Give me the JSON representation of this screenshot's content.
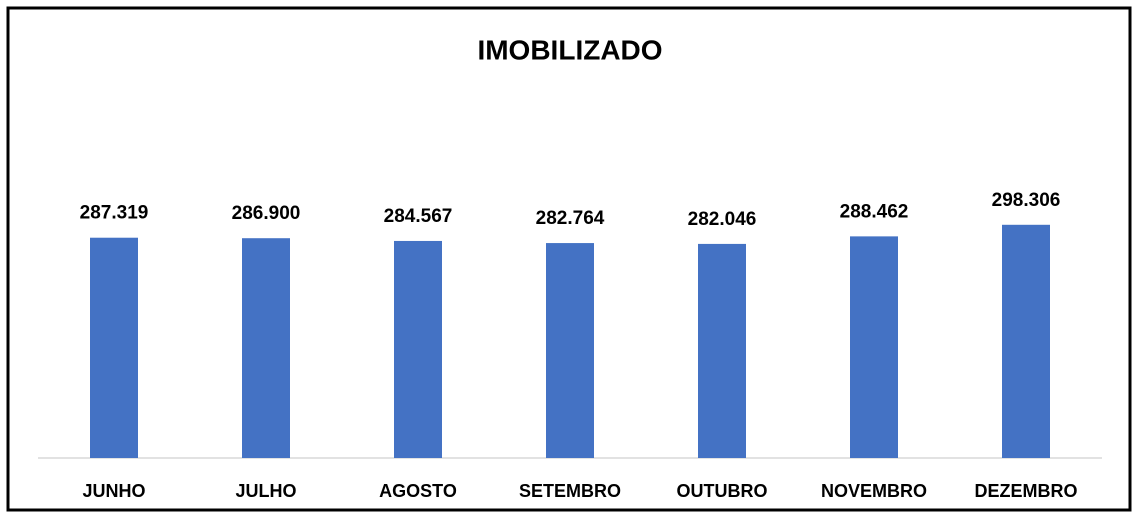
{
  "chart_data": {
    "type": "bar",
    "title": "IMOBILIZADO",
    "categories": [
      "JUNHO",
      "JULHO",
      "AGOSTO",
      "SETEMBRO",
      "OUTUBRO",
      "NOVEMBRO",
      "DEZEMBRO"
    ],
    "values": [
      287319,
      286900,
      284567,
      282764,
      282046,
      288462,
      298306
    ],
    "value_labels": [
      "287.319",
      "286.900",
      "284.567",
      "282.764",
      "282.046",
      "288.462",
      "298.306"
    ],
    "color": "#4472c4",
    "ylim": [
      100000,
      350000
    ]
  }
}
